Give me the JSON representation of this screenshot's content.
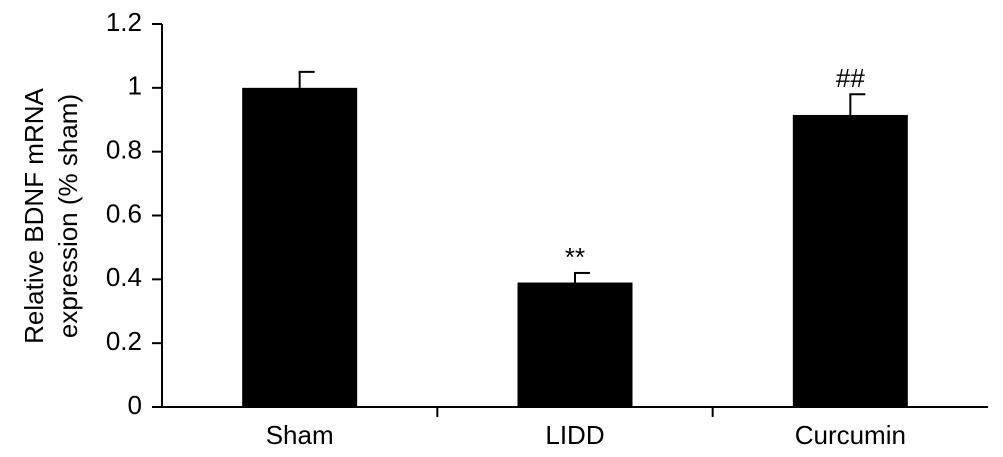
{
  "chart_data": {
    "type": "bar",
    "ylabel": [
      "Relative BDNF mRNA",
      "expression (% sham)"
    ],
    "categories": [
      "Sham",
      "LIDD",
      "Curcumin"
    ],
    "values": [
      1.0,
      0.39,
      0.915
    ],
    "errors": [
      0.05,
      0.03,
      0.065
    ],
    "annotations": [
      null,
      "**",
      "##"
    ],
    "color": "#000000",
    "ylim": [
      0,
      1.2
    ],
    "yticks": [
      0,
      0.2,
      0.4,
      0.6,
      0.8,
      1,
      1.2
    ]
  }
}
